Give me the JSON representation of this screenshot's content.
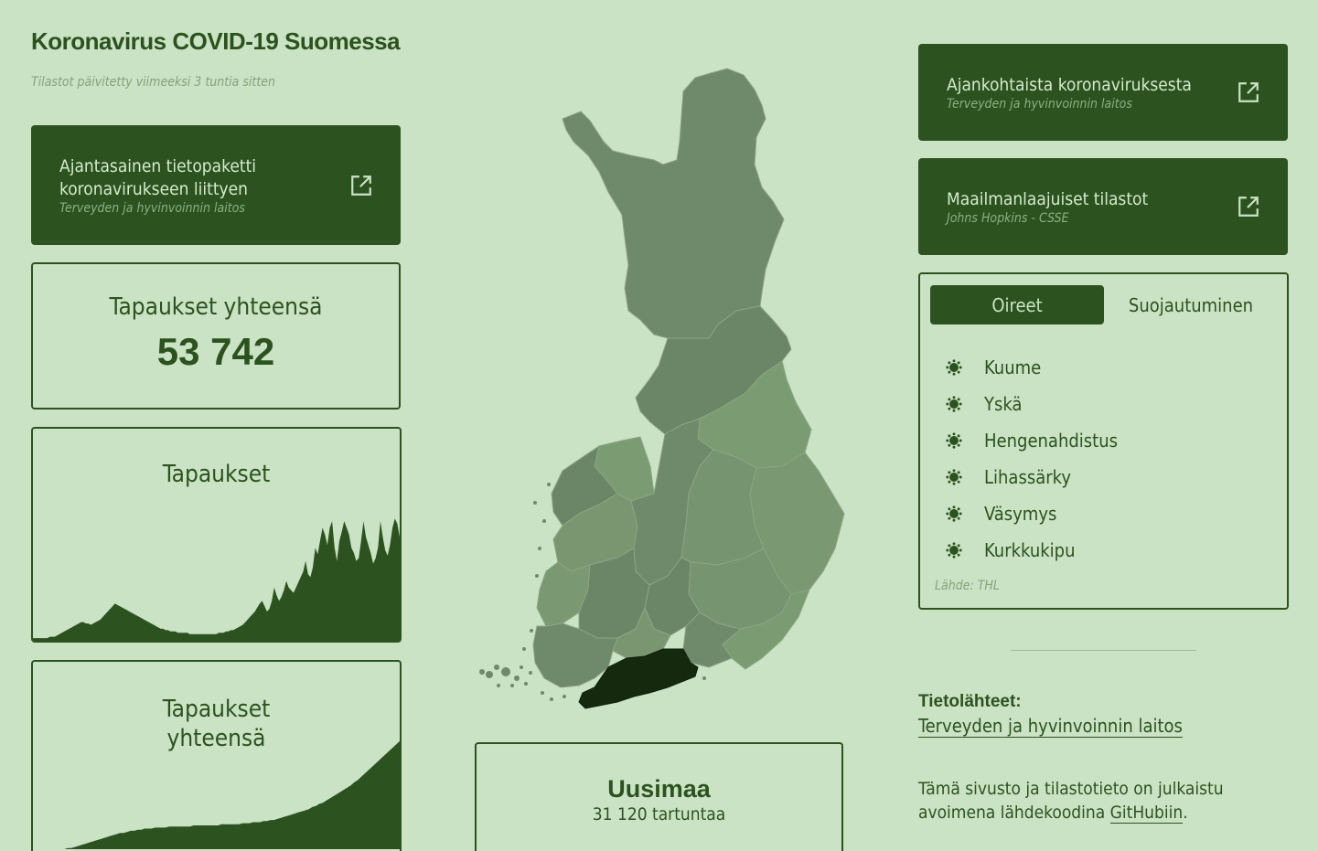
{
  "header": {
    "title": "Koronavirus COVID-19 Suomessa",
    "updated": "Tilastot päivitetty viimeeksi 3 tuntia sitten"
  },
  "left_links": [
    {
      "title_line1": "Ajantasainen tietopaketti",
      "title_line2": "koronavirukseen liittyen",
      "subtitle": "Terveyden ja hyvinvoinnin laitos"
    }
  ],
  "total_cases": {
    "label": "Tapaukset yhteensä",
    "value": "53 742"
  },
  "charts": {
    "daily": {
      "title": "Tapaukset"
    },
    "cumulative": {
      "title_line1": "Tapaukset",
      "title_line2": "yhteensä"
    }
  },
  "chart_data": [
    {
      "type": "area",
      "title": "Tapaukset",
      "values": [
        2,
        2,
        2,
        2,
        2,
        2,
        2,
        3,
        3,
        3,
        4,
        5,
        6,
        7,
        8,
        9,
        10,
        11,
        12,
        13,
        14,
        14,
        13,
        13,
        12,
        13,
        14,
        15,
        16,
        18,
        20,
        22,
        24,
        26,
        28,
        27,
        26,
        25,
        24,
        23,
        22,
        21,
        20,
        19,
        18,
        17,
        16,
        15,
        14,
        13,
        12,
        11,
        10,
        9,
        9,
        8,
        8,
        7,
        7,
        7,
        6,
        6,
        6,
        6,
        6,
        5,
        5,
        5,
        5,
        5,
        5,
        5,
        5,
        5,
        5,
        5,
        5,
        6,
        6,
        6,
        7,
        7,
        8,
        8,
        9,
        10,
        11,
        12,
        14,
        16,
        18,
        20,
        22,
        25,
        28,
        30,
        26,
        22,
        24,
        30,
        40,
        34,
        30,
        33,
        38,
        45,
        40,
        38,
        36,
        40,
        44,
        48,
        52,
        60,
        50,
        48,
        55,
        70,
        65,
        75,
        85,
        80,
        72,
        85,
        90,
        70,
        60,
        75,
        82,
        90,
        85,
        80,
        70,
        66,
        60,
        62,
        75,
        90,
        78,
        72,
        66,
        58,
        62,
        70,
        90,
        78,
        68,
        64,
        72,
        85,
        92,
        88,
        78
      ],
      "ylim": [
        0,
        110
      ]
    },
    {
      "type": "area",
      "title": "Tapaukset yhteensä",
      "values": [
        0,
        0,
        0,
        0,
        0,
        0,
        0,
        0,
        0,
        0,
        1,
        1,
        2,
        3,
        4,
        5,
        6,
        7,
        8,
        9,
        10,
        11,
        12,
        13,
        14,
        15,
        15,
        16,
        17,
        17,
        18,
        18,
        19,
        19,
        19,
        20,
        20,
        20,
        20,
        21,
        21,
        21,
        21,
        21,
        21,
        21,
        22,
        22,
        22,
        22,
        22,
        22,
        22,
        22,
        23,
        23,
        23,
        23,
        23,
        23,
        24,
        24,
        24,
        25,
        25,
        25,
        26,
        26,
        27,
        27,
        28,
        29,
        30,
        31,
        32,
        33,
        34,
        35,
        36,
        37,
        39,
        40,
        42,
        43,
        45,
        47,
        49,
        51,
        53,
        55,
        57,
        59,
        62,
        64,
        67,
        70,
        73,
        76,
        79,
        82,
        85,
        88,
        91,
        94,
        97,
        100
      ],
      "ylim": [
        0,
        110
      ]
    }
  ],
  "map": {
    "highlighted_region": "Uusimaa"
  },
  "region_info": {
    "name": "Uusimaa",
    "cases": "31 120 tartuntaa"
  },
  "right_links": [
    {
      "title": "Ajankohtaista koronaviruksesta",
      "subtitle": "Terveyden ja hyvinvoinnin laitos"
    },
    {
      "title": "Maailmanlaajuiset tilastot",
      "subtitle": "Johns Hopkins - CSSE"
    }
  ],
  "tabs": {
    "items": [
      {
        "label": "Oireet",
        "active": true
      },
      {
        "label": "Suojautuminen",
        "active": false
      }
    ],
    "symptoms": [
      "Kuume",
      "Yskä",
      "Hengenahdistus",
      "Lihassärky",
      "Väsymys",
      "Kurkkukipu"
    ],
    "source": "Lähde: THL"
  },
  "sources": {
    "heading": "Tietolähteet:",
    "link": "Terveyden ja hyvinvoinnin laitos"
  },
  "footer": {
    "text_before": "Tämä sivusto ja tilastotieto on julkaistu avoimena lähdekoodina ",
    "link": "GitHubiin",
    "text_after": "."
  },
  "colors": {
    "background": "#cae3c4",
    "primary": "#2c521f",
    "muted": "#83a37b",
    "map_default": "#6e8a6a",
    "map_light": "#7b9c72",
    "map_highlight": "#15290f"
  },
  "icons": {
    "external_link": "external-link-icon",
    "bullet": "virus-icon"
  }
}
